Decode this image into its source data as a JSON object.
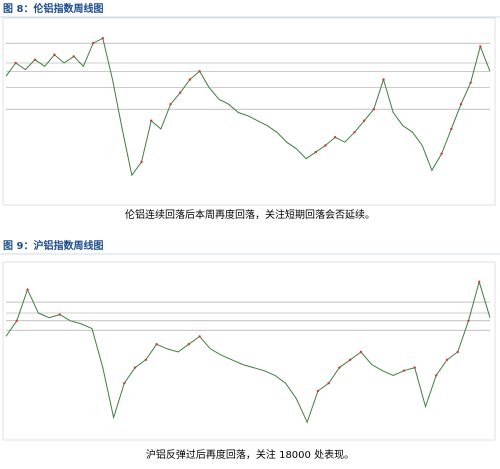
{
  "figures": [
    {
      "title": "图 8：伦铝指数周线图",
      "caption": "伦铝连续回落后本周再度回落，关注短期回落会否延续。",
      "chart_data": {
        "type": "line",
        "color": "#3d7f3d",
        "ylim": [
          0,
          100
        ],
        "values": [
          72,
          80,
          76,
          82,
          78,
          85,
          80,
          84,
          78,
          92,
          95,
          70,
          40,
          12,
          20,
          45,
          40,
          55,
          62,
          70,
          75,
          65,
          58,
          55,
          50,
          48,
          45,
          42,
          38,
          32,
          28,
          22,
          26,
          30,
          35,
          32,
          38,
          45,
          52,
          70,
          50,
          42,
          38,
          30,
          15,
          25,
          40,
          55,
          68,
          90,
          75
        ],
        "reference_lines": [
          92,
          80,
          75,
          65,
          52
        ]
      }
    },
    {
      "title": "图 9：沪铝指数周线图",
      "caption": "沪铝反弹过后再度回落，关注 18000 处表现。",
      "chart_data": {
        "type": "line",
        "color": "#3d7f3d",
        "ylim": [
          0,
          100
        ],
        "values": [
          60,
          70,
          90,
          75,
          72,
          74,
          70,
          68,
          65,
          40,
          8,
          30,
          40,
          45,
          55,
          52,
          50,
          55,
          60,
          52,
          48,
          45,
          42,
          40,
          38,
          35,
          30,
          20,
          5,
          25,
          30,
          40,
          45,
          50,
          42,
          38,
          35,
          38,
          40,
          15,
          35,
          45,
          50,
          70,
          95,
          72
        ],
        "reference_lines": [
          82,
          75,
          70,
          64
        ]
      }
    }
  ]
}
